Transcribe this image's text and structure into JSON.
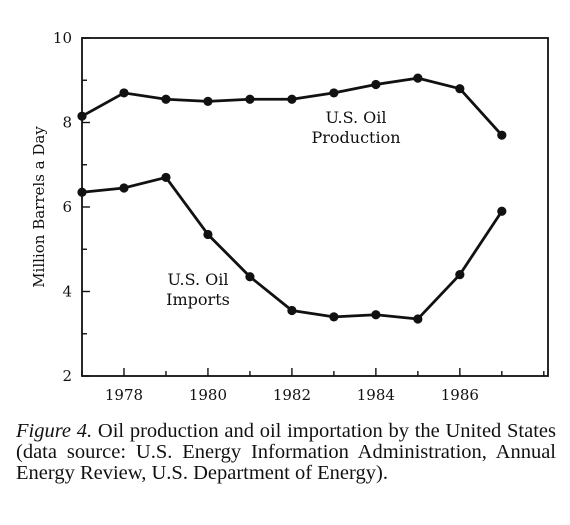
{
  "chart_data": {
    "type": "line",
    "x": [
      1977,
      1978,
      1979,
      1980,
      1981,
      1982,
      1983,
      1984,
      1985,
      1986,
      1987
    ],
    "series": [
      {
        "name": "U.S. Oil Production",
        "values": [
          8.15,
          8.7,
          8.55,
          8.5,
          8.55,
          8.55,
          8.7,
          8.9,
          9.05,
          8.8,
          7.7
        ]
      },
      {
        "name": "U.S. Oil Imports",
        "values": [
          6.35,
          6.45,
          6.7,
          5.35,
          4.35,
          3.55,
          3.4,
          3.45,
          3.35,
          4.4,
          5.9
        ]
      }
    ],
    "xlim": [
      1977,
      1988.1
    ],
    "ylim": [
      2,
      10
    ],
    "xticks": [
      1978,
      1980,
      1982,
      1984,
      1986
    ],
    "yticks": [
      2,
      4,
      6,
      8,
      10
    ],
    "xlabel": "",
    "ylabel": "Million Barrels a Day",
    "series_labels": [
      {
        "lines": [
          "U.S. Oil",
          "Production"
        ],
        "series": "U.S. Oil Production"
      },
      {
        "lines": [
          "U.S. Oil",
          "Imports"
        ],
        "series": "U.S. Oil Imports"
      }
    ],
    "grid": false,
    "legend": "inline labels"
  },
  "caption": {
    "figure_label": "Figure 4.",
    "text": " Oil production and oil importation by the United States (data source: U.S. Energy Information Administration, Annual Energy Review, U.S. Department of Energy)."
  }
}
